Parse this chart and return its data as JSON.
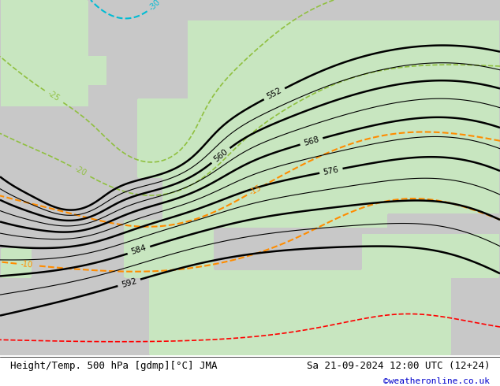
{
  "title_left": "Height/Temp. 500 hPa [gdmp][°C] JMA",
  "title_right": "Sa 21-09-2024 12:00 UTC (12+24)",
  "credit": "©weatheronline.co.uk",
  "bg_land_color": "#c8e6c0",
  "bg_sea_color": "#d8d8d8",
  "bg_gray_color": "#b8b8b8",
  "contour_color_geo": "#000000",
  "contour_color_temp_warm": "#ff8c00",
  "contour_color_temp_cold_cyan": "#00bcd4",
  "contour_color_temp_cold_green": "#90c040",
  "contour_color_temp_cold_red": "#ff0000",
  "label_fontsize": 8,
  "title_fontsize": 9,
  "credit_fontsize": 8,
  "credit_color": "#0000cc",
  "figsize": [
    6.34,
    4.9
  ],
  "dpi": 100
}
